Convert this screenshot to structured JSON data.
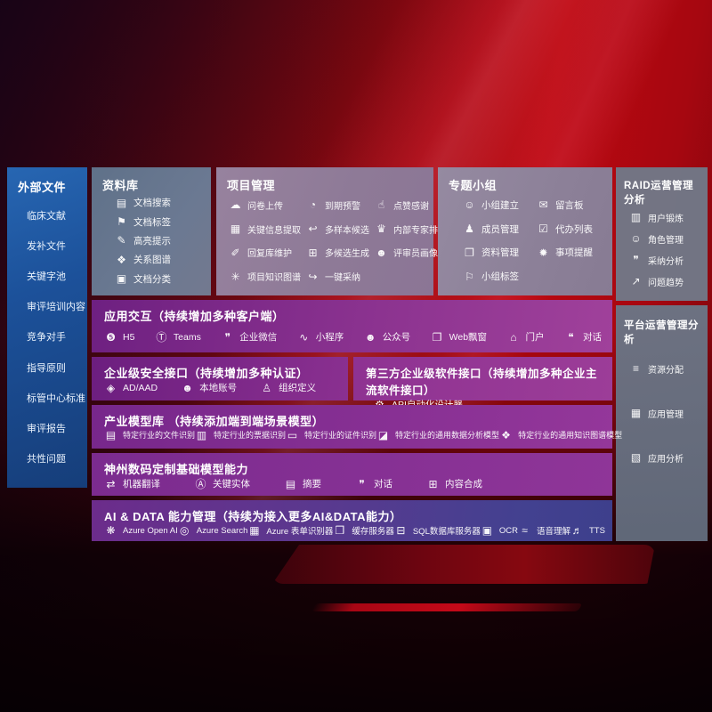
{
  "colors": {
    "background_red": "#bb080f",
    "background_dark": "#30060f",
    "sidebar_blue": "#1c519a",
    "panel_slate_gray": "#6b7992",
    "panel_mauve": "#8e7a97",
    "row_purple": "#8c3390",
    "row_indigo": "#3d3f8c"
  },
  "sidebar": {
    "title": "外部文件",
    "items": [
      {
        "label": "临床文献"
      },
      {
        "label": "发补文件"
      },
      {
        "label": "关键字池"
      },
      {
        "label": "审评培训内容"
      },
      {
        "label": "竞争对手"
      },
      {
        "label": "指导原则"
      },
      {
        "label": "标管中心标准"
      },
      {
        "label": "审评报告"
      },
      {
        "label": "共性问题"
      }
    ]
  },
  "library": {
    "title": "资料库",
    "items": [
      {
        "label": "文档搜索",
        "icon": "document-search-icon",
        "glyph": "▤"
      },
      {
        "label": "文档标签",
        "icon": "document-tag-icon",
        "glyph": "⚑"
      },
      {
        "label": "高亮提示",
        "icon": "highlight-pen-icon",
        "glyph": "✎"
      },
      {
        "label": "关系图谱",
        "icon": "relation-graph-icon",
        "glyph": "❖"
      },
      {
        "label": "文档分类",
        "icon": "document-classify-icon",
        "glyph": "▣"
      }
    ]
  },
  "project": {
    "title": "项目管理",
    "items": [
      {
        "label": "问卷上传",
        "icon": "cloud-upload-icon",
        "glyph": "☁"
      },
      {
        "label": "关键信息提取",
        "icon": "key-info-extract-icon",
        "glyph": "▦"
      },
      {
        "label": "回复库维护",
        "icon": "reply-library-icon",
        "glyph": "✐"
      },
      {
        "label": "项目知识图谱",
        "icon": "project-knowledge-graph-icon",
        "glyph": "✳"
      },
      {
        "label": "到期预警",
        "icon": "due-alert-icon",
        "glyph": "◔"
      },
      {
        "label": "多样本候选",
        "icon": "multi-sample-icon",
        "glyph": "↩"
      },
      {
        "label": "多候选生成",
        "icon": "multi-candidate-gen-icon",
        "glyph": "⊞"
      },
      {
        "label": "一键采纳",
        "icon": "one-click-adopt-icon",
        "glyph": "↪"
      },
      {
        "label": "点赞感谢",
        "icon": "thumbs-up-icon",
        "glyph": "☝"
      },
      {
        "label": "内部专家排名",
        "icon": "expert-rank-icon",
        "glyph": "♛"
      },
      {
        "label": "评审员画像",
        "icon": "reviewer-profile-icon",
        "glyph": "☻"
      }
    ]
  },
  "topic_group": {
    "title": "专题小组",
    "items": [
      {
        "label": "小组建立",
        "icon": "group-create-icon",
        "glyph": "☺"
      },
      {
        "label": "成员管理",
        "icon": "member-manage-icon",
        "glyph": "♟"
      },
      {
        "label": "资料管理",
        "icon": "material-manage-icon",
        "glyph": "❐"
      },
      {
        "label": "小组标签",
        "icon": "group-tag-icon",
        "glyph": "⚐"
      },
      {
        "label": "留言板",
        "icon": "message-board-icon",
        "glyph": "✉"
      },
      {
        "label": "代办列表",
        "icon": "todo-list-icon",
        "glyph": "☑"
      },
      {
        "label": "事项提醒",
        "icon": "reminder-bell-icon",
        "glyph": "✹"
      }
    ]
  },
  "raid": {
    "title": "RAID运营管理分析",
    "items": [
      {
        "label": "用户锻炼",
        "icon": "user-card-icon",
        "glyph": "▥"
      },
      {
        "label": "角色管理",
        "icon": "role-manage-icon",
        "glyph": "☺"
      },
      {
        "label": "采纳分析",
        "icon": "qa-analysis-icon",
        "glyph": "❞"
      },
      {
        "label": "问题趋势",
        "icon": "issue-trend-icon",
        "glyph": "↗"
      }
    ]
  },
  "platform": {
    "title": "平台运营管理分析",
    "items": [
      {
        "label": "资源分配",
        "icon": "resource-allocation-icon",
        "glyph": "≡"
      },
      {
        "label": "应用管理",
        "icon": "app-manage-icon",
        "glyph": "▦"
      },
      {
        "label": "应用分析",
        "icon": "app-analysis-icon",
        "glyph": "▧"
      }
    ]
  },
  "interaction": {
    "title": "应用交互（持续增加多种客户端）",
    "items": [
      {
        "label": "H5",
        "icon": "html5-icon",
        "glyph": "❺"
      },
      {
        "label": "Teams",
        "icon": "teams-icon",
        "glyph": "Ⓣ"
      },
      {
        "label": "企业微信",
        "icon": "wecom-icon",
        "glyph": "❞"
      },
      {
        "label": "小程序",
        "icon": "miniprogram-icon",
        "glyph": "∿"
      },
      {
        "label": "公众号",
        "icon": "official-account-icon",
        "glyph": "☻"
      },
      {
        "label": "Web飘窗",
        "icon": "web-popup-icon",
        "glyph": "❐"
      },
      {
        "label": "门户",
        "icon": "portal-icon",
        "glyph": "⌂"
      },
      {
        "label": "对话",
        "icon": "dialog-icon",
        "glyph": "❝"
      }
    ]
  },
  "security": {
    "title": "企业级安全接口（持续增加多种认证）",
    "items": [
      {
        "label": "AD/AAD",
        "icon": "ad-aad-icon",
        "glyph": "◈"
      },
      {
        "label": "本地账号",
        "icon": "local-account-icon",
        "glyph": "☻"
      },
      {
        "label": "组织定义",
        "icon": "org-definition-icon",
        "glyph": "♙"
      }
    ]
  },
  "third_party": {
    "title": "第三方企业级软件接口（持续增加多种企业主流软件接口）",
    "items": [
      {
        "label": "API自动化设计器",
        "icon": "api-designer-gear-icon",
        "glyph": "⚙"
      }
    ]
  },
  "industry_models": {
    "title": "产业模型库 （持续添加端到端场景模型）",
    "items": [
      {
        "label": "特定行业的文件识别",
        "icon": "file-recognition-icon",
        "glyph": "▤"
      },
      {
        "label": "特定行业的票据识别",
        "icon": "invoice-recognition-icon",
        "glyph": "▥"
      },
      {
        "label": "特定行业的证件识别",
        "icon": "id-card-recognition-icon",
        "glyph": "▭"
      },
      {
        "label": "特定行业的通用数据分析模型",
        "icon": "data-analysis-model-icon",
        "glyph": "◪"
      },
      {
        "label": "特定行业的通用知识图谱模型",
        "icon": "knowledge-graph-model-icon",
        "glyph": "❖"
      }
    ]
  },
  "custom_models": {
    "title": "神州数码定制基础模型能力",
    "items": [
      {
        "label": "机器翻译",
        "icon": "machine-translation-icon",
        "glyph": "⇄"
      },
      {
        "label": "关键实体",
        "icon": "key-entity-icon",
        "glyph": "Ⓐ"
      },
      {
        "label": "摘要",
        "icon": "summary-icon",
        "glyph": "▤"
      },
      {
        "label": "对话",
        "icon": "dialogue-icon",
        "glyph": "❞"
      },
      {
        "label": "内容合成",
        "icon": "content-synthesis-icon",
        "glyph": "⊞"
      }
    ]
  },
  "ai_data": {
    "title": "AI & DATA 能力管理（持续为接入更多AI&DATA能力）",
    "items": [
      {
        "label": "Azure Open AI",
        "icon": "azure-openai-icon",
        "glyph": "❋"
      },
      {
        "label": "Azure Search",
        "icon": "azure-search-icon",
        "glyph": "◎"
      },
      {
        "label": "Azure 表单识别器",
        "icon": "azure-form-recognizer-icon",
        "glyph": "▦"
      },
      {
        "label": "缓存服务器",
        "icon": "cache-server-icon",
        "glyph": "❒"
      },
      {
        "label": "SQL数据库服务器",
        "icon": "sql-database-icon",
        "glyph": "⊟"
      },
      {
        "label": "OCR",
        "icon": "ocr-icon",
        "glyph": "▣"
      },
      {
        "label": "语音理解",
        "icon": "speech-understanding-icon",
        "glyph": "≈"
      },
      {
        "label": "TTS",
        "icon": "tts-icon",
        "glyph": "♬"
      }
    ]
  }
}
